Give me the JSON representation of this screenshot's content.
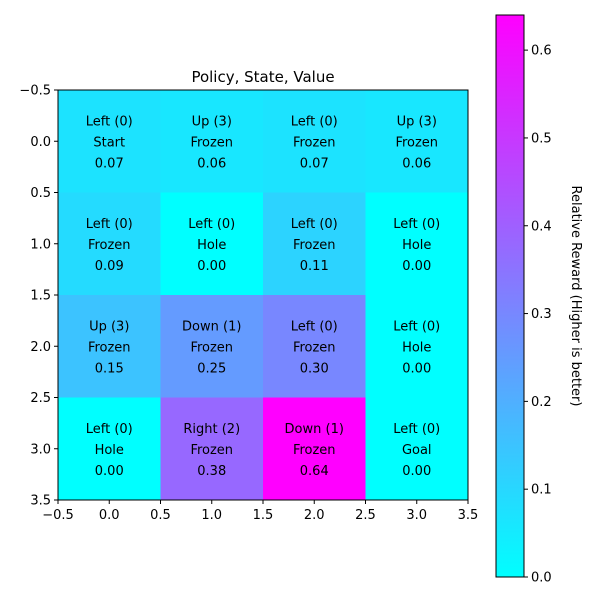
{
  "chart_data": {
    "type": "heatmap",
    "title": "Policy, State, Value",
    "xlabel": "",
    "ylabel": "",
    "xlim": [
      -0.5,
      3.5
    ],
    "ylim": [
      3.5,
      -0.5
    ],
    "x_ticks": [
      "−0.5",
      "0.0",
      "0.5",
      "1.0",
      "1.5",
      "2.0",
      "2.5",
      "3.0",
      "3.5"
    ],
    "y_ticks": [
      "−0.5",
      "0.0",
      "0.5",
      "1.0",
      "1.5",
      "2.0",
      "2.5",
      "3.0",
      "3.5"
    ],
    "colormap": "cool",
    "colormap_colors": [
      "#00ffff",
      "#ff00ff"
    ],
    "vmin": 0.0,
    "vmax": 0.64,
    "cells": [
      [
        {
          "action": "Left (0)",
          "state": "Start",
          "value": "0.07"
        },
        {
          "action": "Up (3)",
          "state": "Frozen",
          "value": "0.06"
        },
        {
          "action": "Left (0)",
          "state": "Frozen",
          "value": "0.07"
        },
        {
          "action": "Up (3)",
          "state": "Frozen",
          "value": "0.06"
        }
      ],
      [
        {
          "action": "Left (0)",
          "state": "Frozen",
          "value": "0.09"
        },
        {
          "action": "Left (0)",
          "state": "Hole",
          "value": "0.00"
        },
        {
          "action": "Left (0)",
          "state": "Frozen",
          "value": "0.11"
        },
        {
          "action": "Left (0)",
          "state": "Hole",
          "value": "0.00"
        }
      ],
      [
        {
          "action": "Up (3)",
          "state": "Frozen",
          "value": "0.15"
        },
        {
          "action": "Down (1)",
          "state": "Frozen",
          "value": "0.25"
        },
        {
          "action": "Left (0)",
          "state": "Frozen",
          "value": "0.30"
        },
        {
          "action": "Left (0)",
          "state": "Hole",
          "value": "0.00"
        }
      ],
      [
        {
          "action": "Left (0)",
          "state": "Hole",
          "value": "0.00"
        },
        {
          "action": "Right (2)",
          "state": "Frozen",
          "value": "0.38"
        },
        {
          "action": "Down (1)",
          "state": "Frozen",
          "value": "0.64"
        },
        {
          "action": "Left (0)",
          "state": "Goal",
          "value": "0.00"
        }
      ]
    ],
    "colorbar": {
      "label": "Relative Reward (Higher is better)",
      "ticks": [
        {
          "value": 0.0,
          "label": "0.0"
        },
        {
          "value": 0.1,
          "label": "0.1"
        },
        {
          "value": 0.2,
          "label": "0.2"
        },
        {
          "value": 0.3,
          "label": "0.3"
        },
        {
          "value": 0.4,
          "label": "0.4"
        },
        {
          "value": 0.5,
          "label": "0.5"
        },
        {
          "value": 0.6,
          "label": "0.6"
        }
      ]
    }
  }
}
